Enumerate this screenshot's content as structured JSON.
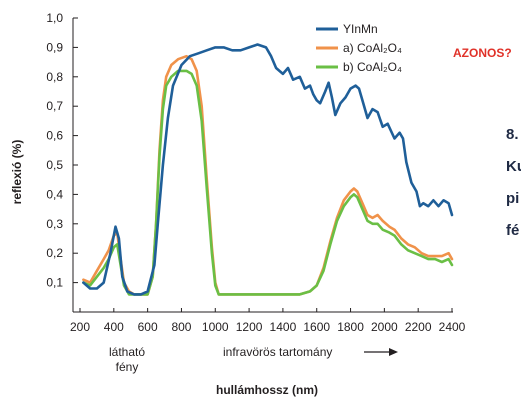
{
  "chart_data": {
    "type": "line",
    "ylabel": "reflexió (%)",
    "xlabel": "hullámhossz (nm)",
    "xlim": [
      200,
      2400
    ],
    "ylim": [
      0.0,
      1.0
    ],
    "xticks": [
      "200",
      "400",
      "600",
      "800",
      "1000",
      "1200",
      "1400",
      "1600",
      "1800",
      "2000",
      "2200",
      "2400"
    ],
    "yticks": [
      "0,1",
      "0,2",
      "0,3",
      "0,4",
      "0,5",
      "0,6",
      "0,7",
      "0,8",
      "0,9",
      "1,0"
    ],
    "region_labels": {
      "visible_line1": "látható",
      "visible_line2": "fény",
      "infrared": "infravörös tartomány"
    },
    "annotation": "AZONOS?",
    "legend_position": "top-right",
    "series": [
      {
        "name": "YInMn",
        "color": "#1f5f99",
        "points": [
          [
            220,
            0.1
          ],
          [
            260,
            0.08
          ],
          [
            300,
            0.08
          ],
          [
            340,
            0.1
          ],
          [
            380,
            0.2
          ],
          [
            410,
            0.29
          ],
          [
            430,
            0.25
          ],
          [
            450,
            0.12
          ],
          [
            480,
            0.07
          ],
          [
            520,
            0.06
          ],
          [
            560,
            0.06
          ],
          [
            600,
            0.07
          ],
          [
            640,
            0.16
          ],
          [
            660,
            0.3
          ],
          [
            690,
            0.5
          ],
          [
            720,
            0.66
          ],
          [
            750,
            0.77
          ],
          [
            800,
            0.84
          ],
          [
            850,
            0.87
          ],
          [
            900,
            0.88
          ],
          [
            950,
            0.89
          ],
          [
            1000,
            0.9
          ],
          [
            1050,
            0.9
          ],
          [
            1100,
            0.89
          ],
          [
            1150,
            0.89
          ],
          [
            1200,
            0.9
          ],
          [
            1250,
            0.91
          ],
          [
            1300,
            0.9
          ],
          [
            1330,
            0.87
          ],
          [
            1360,
            0.83
          ],
          [
            1400,
            0.81
          ],
          [
            1430,
            0.83
          ],
          [
            1460,
            0.79
          ],
          [
            1500,
            0.8
          ],
          [
            1530,
            0.76
          ],
          [
            1560,
            0.77
          ],
          [
            1580,
            0.74
          ],
          [
            1600,
            0.72
          ],
          [
            1620,
            0.71
          ],
          [
            1650,
            0.75
          ],
          [
            1670,
            0.78
          ],
          [
            1690,
            0.73
          ],
          [
            1710,
            0.67
          ],
          [
            1740,
            0.71
          ],
          [
            1770,
            0.73
          ],
          [
            1800,
            0.76
          ],
          [
            1830,
            0.77
          ],
          [
            1850,
            0.76
          ],
          [
            1870,
            0.72
          ],
          [
            1900,
            0.66
          ],
          [
            1930,
            0.69
          ],
          [
            1960,
            0.68
          ],
          [
            1990,
            0.63
          ],
          [
            2020,
            0.64
          ],
          [
            2060,
            0.59
          ],
          [
            2090,
            0.61
          ],
          [
            2110,
            0.59
          ],
          [
            2130,
            0.51
          ],
          [
            2160,
            0.44
          ],
          [
            2190,
            0.41
          ],
          [
            2210,
            0.36
          ],
          [
            2230,
            0.37
          ],
          [
            2260,
            0.36
          ],
          [
            2290,
            0.38
          ],
          [
            2320,
            0.36
          ],
          [
            2350,
            0.38
          ],
          [
            2380,
            0.37
          ],
          [
            2400,
            0.33
          ]
        ]
      },
      {
        "name": "a) CoAl₂O₄",
        "color": "#f0924a",
        "points": [
          [
            220,
            0.11
          ],
          [
            260,
            0.1
          ],
          [
            300,
            0.14
          ],
          [
            340,
            0.18
          ],
          [
            370,
            0.21
          ],
          [
            400,
            0.26
          ],
          [
            420,
            0.27
          ],
          [
            440,
            0.18
          ],
          [
            460,
            0.1
          ],
          [
            490,
            0.07
          ],
          [
            520,
            0.06
          ],
          [
            560,
            0.06
          ],
          [
            600,
            0.06
          ],
          [
            630,
            0.12
          ],
          [
            650,
            0.3
          ],
          [
            670,
            0.55
          ],
          [
            690,
            0.72
          ],
          [
            710,
            0.8
          ],
          [
            740,
            0.84
          ],
          [
            780,
            0.86
          ],
          [
            830,
            0.87
          ],
          [
            860,
            0.86
          ],
          [
            890,
            0.82
          ],
          [
            920,
            0.7
          ],
          [
            950,
            0.45
          ],
          [
            980,
            0.22
          ],
          [
            1000,
            0.1
          ],
          [
            1020,
            0.06
          ],
          [
            1100,
            0.06
          ],
          [
            1200,
            0.06
          ],
          [
            1300,
            0.06
          ],
          [
            1400,
            0.06
          ],
          [
            1500,
            0.06
          ],
          [
            1560,
            0.07
          ],
          [
            1600,
            0.09
          ],
          [
            1640,
            0.15
          ],
          [
            1680,
            0.24
          ],
          [
            1720,
            0.32
          ],
          [
            1760,
            0.38
          ],
          [
            1800,
            0.41
          ],
          [
            1820,
            0.42
          ],
          [
            1840,
            0.41
          ],
          [
            1870,
            0.37
          ],
          [
            1900,
            0.33
          ],
          [
            1930,
            0.32
          ],
          [
            1960,
            0.33
          ],
          [
            1990,
            0.31
          ],
          [
            2030,
            0.29
          ],
          [
            2060,
            0.28
          ],
          [
            2100,
            0.25
          ],
          [
            2140,
            0.23
          ],
          [
            2180,
            0.22
          ],
          [
            2220,
            0.2
          ],
          [
            2260,
            0.19
          ],
          [
            2300,
            0.19
          ],
          [
            2340,
            0.19
          ],
          [
            2380,
            0.2
          ],
          [
            2400,
            0.18
          ]
        ]
      },
      {
        "name": "b) CoAl₂O₄",
        "color": "#6abf45",
        "points": [
          [
            220,
            0.1
          ],
          [
            260,
            0.09
          ],
          [
            300,
            0.12
          ],
          [
            340,
            0.15
          ],
          [
            370,
            0.18
          ],
          [
            400,
            0.22
          ],
          [
            420,
            0.23
          ],
          [
            440,
            0.16
          ],
          [
            460,
            0.09
          ],
          [
            490,
            0.06
          ],
          [
            520,
            0.06
          ],
          [
            560,
            0.06
          ],
          [
            600,
            0.06
          ],
          [
            630,
            0.12
          ],
          [
            650,
            0.3
          ],
          [
            670,
            0.53
          ],
          [
            690,
            0.69
          ],
          [
            710,
            0.77
          ],
          [
            740,
            0.8
          ],
          [
            780,
            0.82
          ],
          [
            830,
            0.82
          ],
          [
            860,
            0.81
          ],
          [
            890,
            0.77
          ],
          [
            920,
            0.65
          ],
          [
            950,
            0.42
          ],
          [
            980,
            0.2
          ],
          [
            1000,
            0.09
          ],
          [
            1020,
            0.06
          ],
          [
            1100,
            0.06
          ],
          [
            1200,
            0.06
          ],
          [
            1300,
            0.06
          ],
          [
            1400,
            0.06
          ],
          [
            1500,
            0.06
          ],
          [
            1560,
            0.07
          ],
          [
            1600,
            0.09
          ],
          [
            1640,
            0.14
          ],
          [
            1680,
            0.23
          ],
          [
            1720,
            0.31
          ],
          [
            1760,
            0.36
          ],
          [
            1800,
            0.39
          ],
          [
            1820,
            0.4
          ],
          [
            1840,
            0.39
          ],
          [
            1870,
            0.35
          ],
          [
            1900,
            0.31
          ],
          [
            1930,
            0.3
          ],
          [
            1960,
            0.3
          ],
          [
            1990,
            0.28
          ],
          [
            2030,
            0.27
          ],
          [
            2060,
            0.26
          ],
          [
            2100,
            0.23
          ],
          [
            2140,
            0.21
          ],
          [
            2180,
            0.2
          ],
          [
            2220,
            0.19
          ],
          [
            2260,
            0.18
          ],
          [
            2300,
            0.18
          ],
          [
            2340,
            0.17
          ],
          [
            2380,
            0.18
          ],
          [
            2400,
            0.16
          ]
        ]
      }
    ]
  },
  "side_text": {
    "line1": "8.",
    "line2": "Ku",
    "line3": "pi",
    "line4": "fé"
  }
}
